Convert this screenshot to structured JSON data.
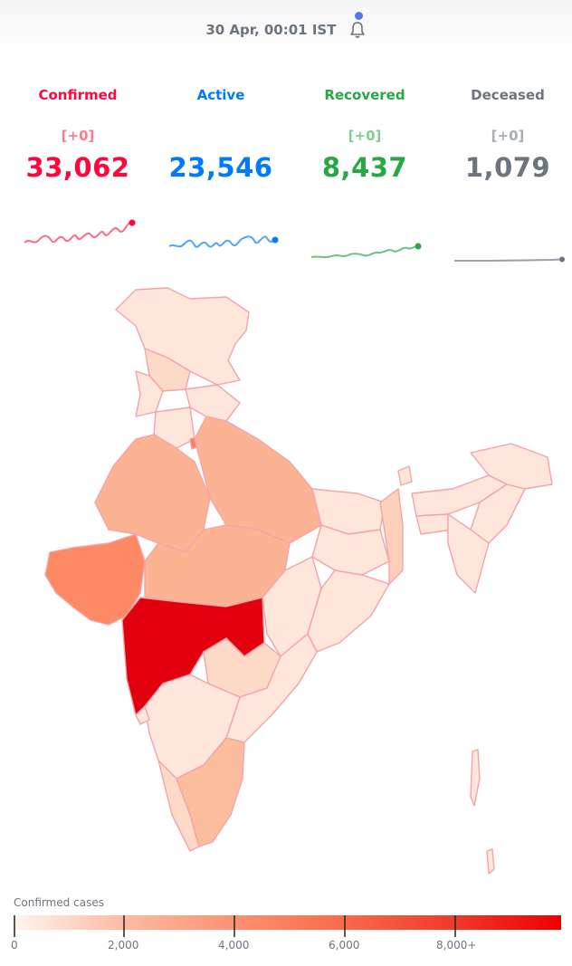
{
  "header": {
    "timestamp": "30 Apr, 00:01 IST"
  },
  "stats": [
    {
      "label": "Confirmed",
      "delta": "[+0]",
      "value": "33,062",
      "color": "#ff073a",
      "delta_color": "#ff7a91"
    },
    {
      "label": "Active",
      "delta": "",
      "value": "23,546",
      "color": "#007bff",
      "delta_color": "#66b0ff"
    },
    {
      "label": "Recovered",
      "delta": "[+0]",
      "value": "8,437",
      "color": "#28a745",
      "delta_color": "#7fcf8e"
    },
    {
      "label": "Deceased",
      "delta": "[+0]",
      "value": "1,079",
      "color": "#6c757d",
      "delta_color": "#a7adb2"
    }
  ],
  "legend": {
    "title": "Confirmed cases",
    "ticks": [
      "0",
      "2,000",
      "4,000",
      "6,000",
      "8,000+"
    ]
  },
  "colors": {
    "maharashtra": "#e3000e",
    "gujarat": "#fd8a64",
    "high": "#fcae8e",
    "mid": "#fdd0bc",
    "low": "#fee6da",
    "border": "#f4a3a8"
  }
}
